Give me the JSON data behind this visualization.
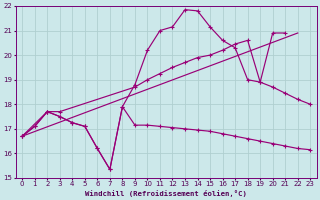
{
  "xlabel": "Windchill (Refroidissement éolien,°C)",
  "xlim": [
    -0.5,
    23.5
  ],
  "ylim": [
    15,
    22
  ],
  "yticks": [
    15,
    16,
    17,
    18,
    19,
    20,
    21,
    22
  ],
  "xticks": [
    0,
    1,
    2,
    3,
    4,
    5,
    6,
    7,
    8,
    9,
    10,
    11,
    12,
    13,
    14,
    15,
    16,
    17,
    18,
    19,
    20,
    21,
    22,
    23
  ],
  "xticklabels": [
    "0",
    "1",
    "2",
    "3",
    "4",
    "5",
    "6",
    "7",
    "8",
    "9",
    "10",
    "11",
    "12",
    "13",
    "14",
    "15",
    "16",
    "17",
    "18",
    "19",
    "20",
    "21",
    "22",
    "23"
  ],
  "background_color": "#cce8ea",
  "grid_color": "#b0cfd0",
  "line_color": "#990077",
  "line1_x": [
    0,
    1,
    2,
    3,
    4,
    5,
    6,
    7,
    8,
    9,
    10,
    11,
    12,
    13,
    14,
    15,
    16,
    17,
    18,
    19,
    20,
    21,
    22,
    23
  ],
  "line1_y": [
    16.7,
    17.1,
    17.7,
    17.5,
    17.25,
    17.1,
    16.2,
    15.35,
    17.9,
    17.15,
    17.15,
    17.1,
    17.05,
    17.0,
    16.95,
    16.9,
    16.8,
    16.7,
    16.6,
    16.5,
    16.4,
    16.3,
    16.2,
    16.15
  ],
  "line2_x": [
    0,
    1,
    2,
    3,
    4,
    5,
    6,
    7,
    8,
    9,
    10,
    11,
    12,
    13,
    14,
    15,
    16,
    17,
    18,
    19,
    20,
    21
  ],
  "line2_y": [
    16.7,
    17.1,
    17.7,
    17.5,
    17.25,
    17.1,
    16.2,
    15.35,
    17.9,
    18.8,
    20.2,
    21.0,
    21.15,
    21.85,
    21.8,
    21.15,
    20.6,
    20.3,
    19.0,
    18.9,
    20.9,
    20.9
  ],
  "line3_x": [
    0,
    2,
    3,
    9,
    10,
    11,
    12,
    13,
    14,
    15,
    16,
    17,
    18,
    19,
    20,
    21,
    22,
    23
  ],
  "line3_y": [
    16.7,
    17.7,
    17.7,
    18.7,
    19.0,
    19.25,
    19.5,
    19.7,
    19.9,
    20.0,
    20.2,
    20.45,
    20.6,
    18.9,
    18.7,
    18.45,
    18.2,
    18.0
  ],
  "line4_x": [
    0,
    22
  ],
  "line4_y": [
    16.7,
    20.9
  ]
}
